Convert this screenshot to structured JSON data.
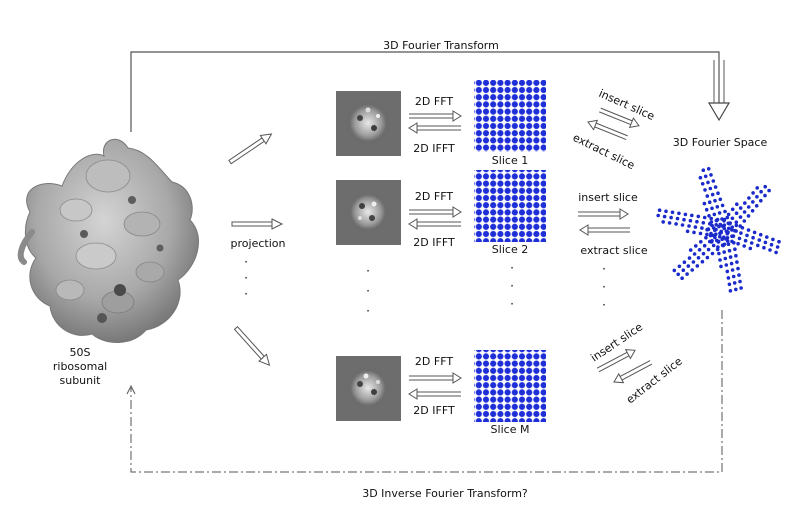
{
  "title_top": "3D Fourier Transform",
  "title_bottom": "3D Inverse Fourier Transform?",
  "molecule_label": [
    "50S",
    "ribosomal",
    "subunit"
  ],
  "projection_label": "projection",
  "fourier_space_label": "3D Fourier Space",
  "rows": [
    {
      "fft": "2D FFT",
      "ifft": "2D IFFT",
      "slice": "Slice 1",
      "insert": "insert slice",
      "extract": "extract slice"
    },
    {
      "fft": "2D FFT",
      "ifft": "2D IFFT",
      "slice": "Slice 2",
      "insert": "insert slice",
      "extract": "extract slice"
    },
    {
      "fft": "2D FFT",
      "ifft": "2D IFFT",
      "slice": "Slice M",
      "insert": "insert slice",
      "extract": "extract slice"
    }
  ],
  "ellipsis": "·",
  "colors": {
    "grid_dot": "#1f2fd8",
    "star_dot": "#1a2acb",
    "molecule": "#9a9a9a",
    "line": "#555555"
  }
}
